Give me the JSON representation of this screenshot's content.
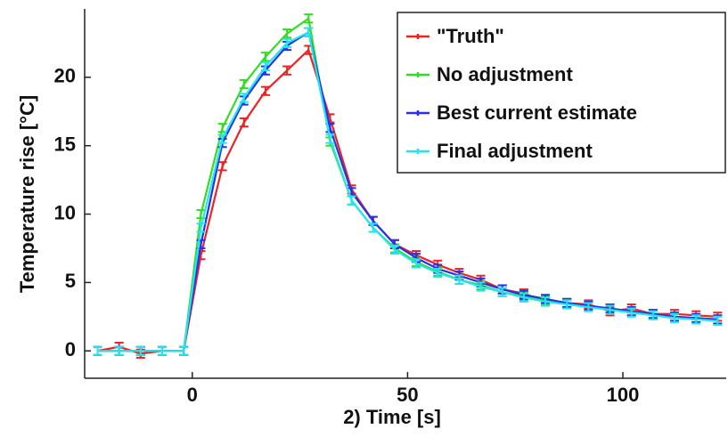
{
  "chart_data": {
    "type": "line",
    "xlabel": "2) Time [s]",
    "ylabel": "Temperature rise [°C]",
    "x": [
      -22,
      -17,
      -12,
      -7,
      -2,
      2,
      7,
      12,
      17,
      22,
      27,
      32,
      37,
      42,
      47,
      52,
      57,
      62,
      67,
      72,
      77,
      82,
      87,
      92,
      97,
      102,
      107,
      112,
      117,
      122
    ],
    "series": [
      {
        "name": "\"Truth\"",
        "color": "#ee2222",
        "values": [
          0,
          0.3,
          -0.2,
          0,
          0,
          7,
          13.5,
          16.7,
          19,
          20.5,
          22,
          17,
          11.8,
          9.5,
          7.8,
          7,
          6.3,
          5.7,
          5.2,
          4.5,
          4.2,
          3.6,
          3.5,
          3.4,
          2.9,
          3.1,
          2.7,
          2.7,
          2.6,
          2.5
        ],
        "errors": [
          0.3,
          0.3,
          0.3,
          0.3,
          0.3,
          0.3,
          0.3,
          0.3,
          0.3,
          0.3,
          0.3,
          0.3,
          0.3,
          0.3,
          0.3,
          0.3,
          0.3,
          0.3,
          0.3,
          0.3,
          0.3,
          0.3,
          0.3,
          0.3,
          0.3,
          0.3,
          0.3,
          0.3,
          0.3,
          0.3
        ]
      },
      {
        "name": "No adjustment",
        "color": "#33dd22",
        "values": [
          0,
          0,
          0,
          0,
          0,
          10,
          16.3,
          19.5,
          21.5,
          23.2,
          24.3,
          15.3,
          11,
          9,
          7.5,
          6.5,
          5.8,
          5.2,
          4.8,
          4.3,
          4,
          3.7,
          3.5,
          3.3,
          3.1,
          2.9,
          2.7,
          2.5,
          2.4,
          2.3
        ],
        "errors": [
          0.3,
          0.3,
          0.3,
          0.3,
          0.3,
          0.3,
          0.3,
          0.3,
          0.3,
          0.3,
          0.3,
          0.3,
          0.3,
          0.3,
          0.3,
          0.3,
          0.3,
          0.3,
          0.3,
          0.3,
          0.3,
          0.3,
          0.3,
          0.3,
          0.3,
          0.3,
          0.3,
          0.3,
          0.3,
          0.3
        ]
      },
      {
        "name": "Best current estimate",
        "color": "#2233ee",
        "values": [
          0,
          0,
          0,
          0,
          0,
          7.8,
          15.2,
          18.3,
          20.5,
          22.3,
          23.3,
          16.3,
          11.6,
          9.5,
          7.8,
          6.8,
          6,
          5.5,
          5,
          4.5,
          4.1,
          3.8,
          3.5,
          3.3,
          3.1,
          2.9,
          2.7,
          2.5,
          2.4,
          2.3
        ],
        "errors": [
          0.3,
          0.3,
          0.3,
          0.3,
          0.3,
          0.3,
          0.3,
          0.3,
          0.3,
          0.3,
          0.3,
          0.3,
          0.3,
          0.3,
          0.3,
          0.3,
          0.3,
          0.3,
          0.3,
          0.3,
          0.3,
          0.3,
          0.3,
          0.3,
          0.3,
          0.3,
          0.3,
          0.3,
          0.3,
          0.3
        ]
      },
      {
        "name": "Final adjustment",
        "color": "#22e5ee",
        "values": [
          0,
          0,
          0,
          0,
          0,
          9,
          15.5,
          18.5,
          20.8,
          22.5,
          23.3,
          15.5,
          11,
          9,
          7.4,
          6.4,
          5.7,
          5.2,
          4.7,
          4.3,
          3.9,
          3.6,
          3.4,
          3.2,
          3,
          2.8,
          2.6,
          2.4,
          2.3,
          2.2
        ],
        "errors": [
          0.3,
          0.3,
          0.3,
          0.3,
          0.3,
          0.3,
          0.3,
          0.3,
          0.3,
          0.3,
          0.3,
          0.3,
          0.3,
          0.3,
          0.3,
          0.3,
          0.3,
          0.3,
          0.3,
          0.3,
          0.3,
          0.3,
          0.3,
          0.3,
          0.3,
          0.3,
          0.3,
          0.3,
          0.3,
          0.3
        ]
      }
    ],
    "xlim": [
      -25,
      124
    ],
    "ylim": [
      -2,
      25
    ],
    "xticks": [
      0,
      50,
      100
    ],
    "yticks": [
      0,
      5,
      10,
      15,
      20
    ],
    "legend": "upper right"
  }
}
